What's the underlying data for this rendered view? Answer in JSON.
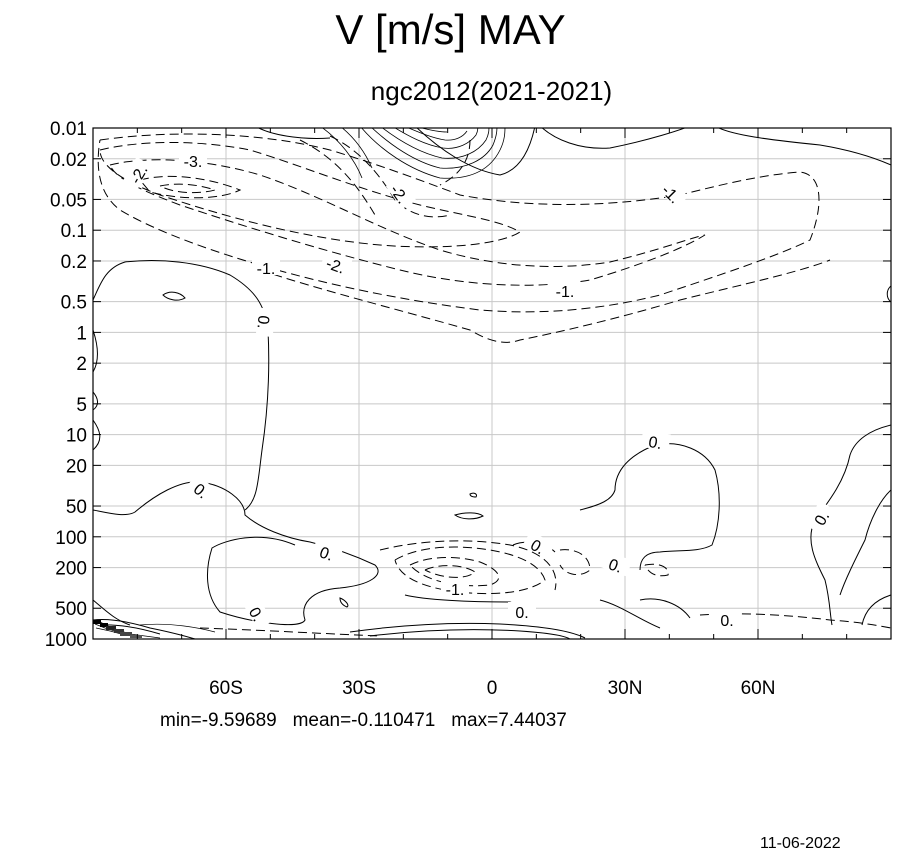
{
  "chart_data": {
    "type": "contour",
    "title": "V [m/s] MAY",
    "subtitle": "ngc2012(2021-2021)",
    "x_ticks": [
      "60S",
      "30S",
      "0",
      "30N",
      "60N"
    ],
    "x_tick_values": [
      -60,
      -30,
      0,
      30,
      60
    ],
    "xlim": [
      -90,
      90
    ],
    "y_ticks": [
      "0.01",
      "0.02",
      "0.05",
      "0.1",
      "0.2",
      "0.5",
      "1",
      "2",
      "5",
      "10",
      "20",
      "50",
      "100",
      "200",
      "500",
      "1000"
    ],
    "y_tick_values": [
      0.01,
      0.02,
      0.05,
      0.1,
      0.2,
      0.5,
      1,
      2,
      5,
      10,
      20,
      50,
      100,
      200,
      500,
      1000
    ],
    "ylim": [
      0.01,
      1000
    ],
    "y_scale": "log",
    "y_reversed": true,
    "grid": true,
    "contour_labels": [
      "-3.",
      "-2.",
      "-2.",
      "-2.",
      "-1.",
      "-1.",
      "-1.",
      "-1.",
      "0.",
      "0.",
      "0.",
      "0.",
      "0.",
      "0.",
      "0.",
      "0.",
      "0.",
      "0."
    ],
    "stats": {
      "min": "min=-9.59689",
      "mean": "mean=-0.110471",
      "max": "max=7.44037"
    },
    "date": "11-06-2022"
  }
}
